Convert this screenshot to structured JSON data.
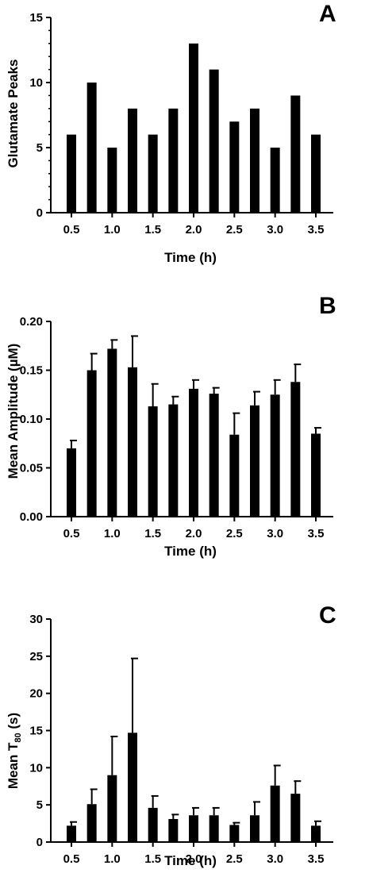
{
  "chart_data": [
    {
      "type": "bar",
      "panel": "A",
      "x": [
        0.5,
        0.75,
        1.0,
        1.25,
        1.5,
        1.75,
        2.0,
        2.25,
        2.5,
        2.75,
        3.0,
        3.25,
        3.5
      ],
      "values": [
        6,
        10,
        5,
        8,
        6,
        8,
        13,
        11,
        7,
        8,
        5,
        9,
        6
      ],
      "xlabel": "Time  (h)",
      "ylabel": "Glutamate Peaks",
      "xticks": [
        "0.5",
        "1.0",
        "1.5",
        "2.0",
        "2.5",
        "3.0",
        "3.5"
      ],
      "yticks": [
        "0",
        "5",
        "10",
        "15"
      ],
      "ylim": [
        0,
        15
      ],
      "grid": false,
      "bar_color": "#000000"
    },
    {
      "type": "bar",
      "panel": "B",
      "x": [
        0.5,
        0.75,
        1.0,
        1.25,
        1.5,
        1.75,
        2.0,
        2.25,
        2.5,
        2.75,
        3.0,
        3.25,
        3.5
      ],
      "values": [
        0.07,
        0.15,
        0.172,
        0.153,
        0.113,
        0.115,
        0.131,
        0.126,
        0.084,
        0.114,
        0.125,
        0.138,
        0.085
      ],
      "errors": [
        0.008,
        0.017,
        0.009,
        0.032,
        0.023,
        0.008,
        0.009,
        0.006,
        0.022,
        0.014,
        0.015,
        0.018,
        0.006
      ],
      "xlabel": "Time  (h)",
      "ylabel": "Mean  Amplitude (µM)",
      "xticks": [
        "0.5",
        "1.0",
        "1.5",
        "2.0",
        "2.5",
        "3.0",
        "3.5"
      ],
      "yticks": [
        "0.00",
        "0.05",
        "0.10",
        "0.15",
        "0.20"
      ],
      "ylim": [
        0,
        0.2
      ],
      "grid": false,
      "bar_color": "#000000"
    },
    {
      "type": "bar",
      "panel": "C",
      "x": [
        0.5,
        0.75,
        1.0,
        1.25,
        1.5,
        1.75,
        2.0,
        2.25,
        2.5,
        2.75,
        3.0,
        3.25,
        3.5
      ],
      "values": [
        2.2,
        5.1,
        9.0,
        14.7,
        4.6,
        3.1,
        3.6,
        3.6,
        2.3,
        3.6,
        7.6,
        6.5,
        2.2
      ],
      "errors": [
        0.5,
        2.0,
        5.2,
        10.0,
        1.6,
        0.6,
        1.0,
        1.0,
        0.3,
        1.8,
        2.7,
        1.7,
        0.6
      ],
      "xlabel": "Time  (h)",
      "ylabel_main": "Mean T",
      "ylabel_sub": "80",
      "ylabel_tail": " (s)",
      "xticks": [
        "0.5",
        "1.0",
        "1.5",
        "2.0",
        "2.5",
        "3.0",
        "3.5"
      ],
      "yticks": [
        "0",
        "5",
        "10",
        "15",
        "20",
        "25",
        "30"
      ],
      "ylim": [
        0,
        30
      ],
      "grid": false,
      "bar_color": "#000000"
    }
  ]
}
